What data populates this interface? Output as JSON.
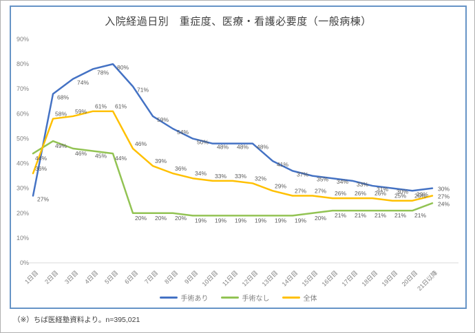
{
  "footnote": "（※）ちば医経塾資料より。n=395,021",
  "colors": {
    "blue": "#4472C4",
    "green": "#92C353",
    "orange": "#FFC000",
    "frame_border": "#6593C6",
    "axis_text": "#808080",
    "label_text": "#595959",
    "title_text": "#404040",
    "axis_line": "#D9D9D9"
  },
  "chart_data": {
    "type": "line",
    "title": "入院経過日別　重症度、医療・看護必要度（一般病棟）",
    "categories": [
      "1日目",
      "2日目",
      "3日目",
      "4日目",
      "5日目",
      "6日目",
      "7日目",
      "8日目",
      "9日目",
      "10日目",
      "11日目",
      "12日目",
      "13日目",
      "14日目",
      "15日目",
      "16日目",
      "17日目",
      "18日目",
      "19日目",
      "20日目",
      "21日以降"
    ],
    "series": [
      {
        "name": "手術あり",
        "color_key": "blue",
        "values": [
          27,
          68,
          74,
          78,
          80,
          71,
          59,
          54,
          50,
          48,
          48,
          48,
          41,
          37,
          35,
          34,
          33,
          31,
          30,
          29,
          30
        ]
      },
      {
        "name": "手術なし",
        "color_key": "green",
        "values": [
          44,
          49,
          46,
          45,
          44,
          20,
          20,
          20,
          19,
          19,
          19,
          19,
          19,
          19,
          20,
          21,
          21,
          21,
          21,
          21,
          24
        ]
      },
      {
        "name": "全体",
        "color_key": "orange",
        "values": [
          36,
          58,
          59,
          61,
          61,
          46,
          39,
          36,
          34,
          33,
          33,
          32,
          29,
          27,
          27,
          26,
          26,
          26,
          25,
          25,
          27
        ]
      }
    ],
    "ylim": [
      0,
      90
    ],
    "ytick_step": 10,
    "ytick_suffix": "%",
    "grid": false,
    "data_labels": true,
    "legend_position": "bottom"
  }
}
